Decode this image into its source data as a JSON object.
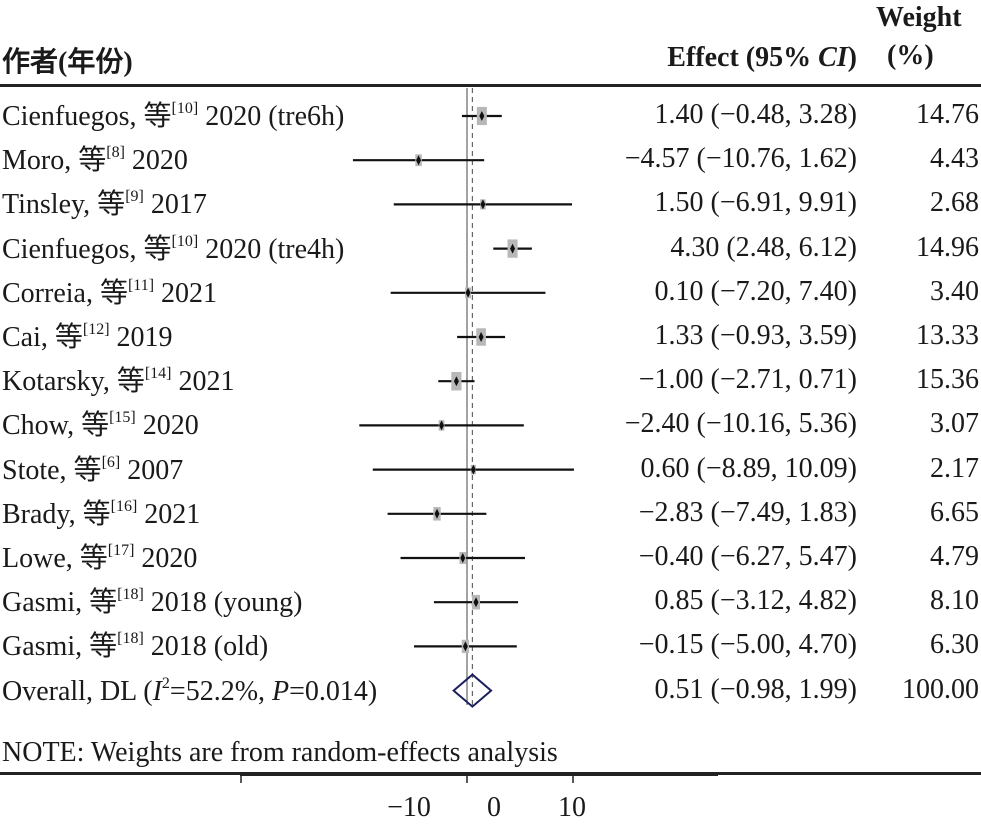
{
  "header": {
    "study_col": "作者(年份)",
    "effect_col": "Effect (95% CI)",
    "weight_col_line1": "Weight",
    "weight_col_line2": "(%)"
  },
  "note": "NOTE: Weights are from random-effects analysis",
  "colors": {
    "marker": "#111111",
    "box": "#b8b8b8",
    "diamond": "#1a1f5e",
    "line": "#111111"
  },
  "chart_data": {
    "type": "forest",
    "xlim": [
      -15,
      15
    ],
    "xticks": [
      -10,
      0,
      10
    ],
    "null_line": 0,
    "studies": [
      {
        "study": "Cienfuegos, 等",
        "ref": "[10]",
        "year": "2020",
        "tag": "(tre6h)",
        "effect": 1.4,
        "lo": -0.48,
        "hi": 3.28,
        "ci_text": "1.40 (−0.48, 3.28)",
        "weight": 14.76,
        "weight_text": "14.76"
      },
      {
        "study": "Moro, 等",
        "ref": "[8]",
        "year": "2020",
        "tag": "",
        "effect": -4.57,
        "lo": -10.76,
        "hi": 1.62,
        "ci_text": "−4.57 (−10.76, 1.62)",
        "weight": 4.43,
        "weight_text": "4.43"
      },
      {
        "study": "Tinsley, 等",
        "ref": "[9]",
        "year": "2017",
        "tag": "",
        "effect": 1.5,
        "lo": -6.91,
        "hi": 9.91,
        "ci_text": "1.50 (−6.91, 9.91)",
        "weight": 2.68,
        "weight_text": "2.68"
      },
      {
        "study": "Cienfuegos, 等",
        "ref": "[10]",
        "year": "2020",
        "tag": "(tre4h)",
        "effect": 4.3,
        "lo": 2.48,
        "hi": 6.12,
        "ci_text": "4.30 (2.48, 6.12)",
        "weight": 14.96,
        "weight_text": "14.96"
      },
      {
        "study": "Correia, 等",
        "ref": "[11]",
        "year": "2021",
        "tag": "",
        "effect": 0.1,
        "lo": -7.2,
        "hi": 7.4,
        "ci_text": "0.10 (−7.20, 7.40)",
        "weight": 3.4,
        "weight_text": "3.40"
      },
      {
        "study": "Cai, 等",
        "ref": "[12]",
        "year": "2019",
        "tag": "",
        "effect": 1.33,
        "lo": -0.93,
        "hi": 3.59,
        "ci_text": "1.33 (−0.93, 3.59)",
        "weight": 13.33,
        "weight_text": "13.33"
      },
      {
        "study": "Kotarsky, 等",
        "ref": "[14]",
        "year": "2021",
        "tag": "",
        "effect": -1.0,
        "lo": -2.71,
        "hi": 0.71,
        "ci_text": "−1.00 (−2.71, 0.71)",
        "weight": 15.36,
        "weight_text": "15.36"
      },
      {
        "study": "Chow, 等",
        "ref": "[15]",
        "year": "2020",
        "tag": "",
        "effect": -2.4,
        "lo": -10.16,
        "hi": 5.36,
        "ci_text": "−2.40 (−10.16, 5.36)",
        "weight": 3.07,
        "weight_text": "3.07"
      },
      {
        "study": "Stote, 等",
        "ref": "[6]",
        "year": "2007",
        "tag": "",
        "effect": 0.6,
        "lo": -8.89,
        "hi": 10.09,
        "ci_text": "0.60 (−8.89, 10.09)",
        "weight": 2.17,
        "weight_text": "2.17"
      },
      {
        "study": "Brady, 等",
        "ref": "[16]",
        "year": "2021",
        "tag": "",
        "effect": -2.83,
        "lo": -7.49,
        "hi": 1.83,
        "ci_text": "−2.83 (−7.49, 1.83)",
        "weight": 6.65,
        "weight_text": "6.65"
      },
      {
        "study": "Lowe, 等",
        "ref": "[17]",
        "year": "2020",
        "tag": "",
        "effect": -0.4,
        "lo": -6.27,
        "hi": 5.47,
        "ci_text": "−0.40 (−6.27, 5.47)",
        "weight": 4.79,
        "weight_text": "4.79"
      },
      {
        "study": "Gasmi, 等",
        "ref": "[18]",
        "year": "2018",
        "tag": "(young)",
        "effect": 0.85,
        "lo": -3.12,
        "hi": 4.82,
        "ci_text": "0.85 (−3.12, 4.82)",
        "weight": 8.1,
        "weight_text": "8.10"
      },
      {
        "study": "Gasmi, 等",
        "ref": "[18]",
        "year": "2018",
        "tag": "(old)",
        "effect": -0.15,
        "lo": -5.0,
        "hi": 4.7,
        "ci_text": "−0.15 (−5.00, 4.70)",
        "weight": 6.3,
        "weight_text": "6.30"
      }
    ],
    "overall": {
      "label_prefix": "Overall, DL (",
      "i2_symbol": "I",
      "i2_sup": "2",
      "i2_value": "=52.2%, ",
      "p_symbol": "P",
      "p_value": "=0.014)",
      "effect": 0.51,
      "lo": -0.98,
      "hi": 1.99,
      "ci_text": "0.51 (−0.98, 1.99)",
      "weight_text": "100.00"
    }
  }
}
